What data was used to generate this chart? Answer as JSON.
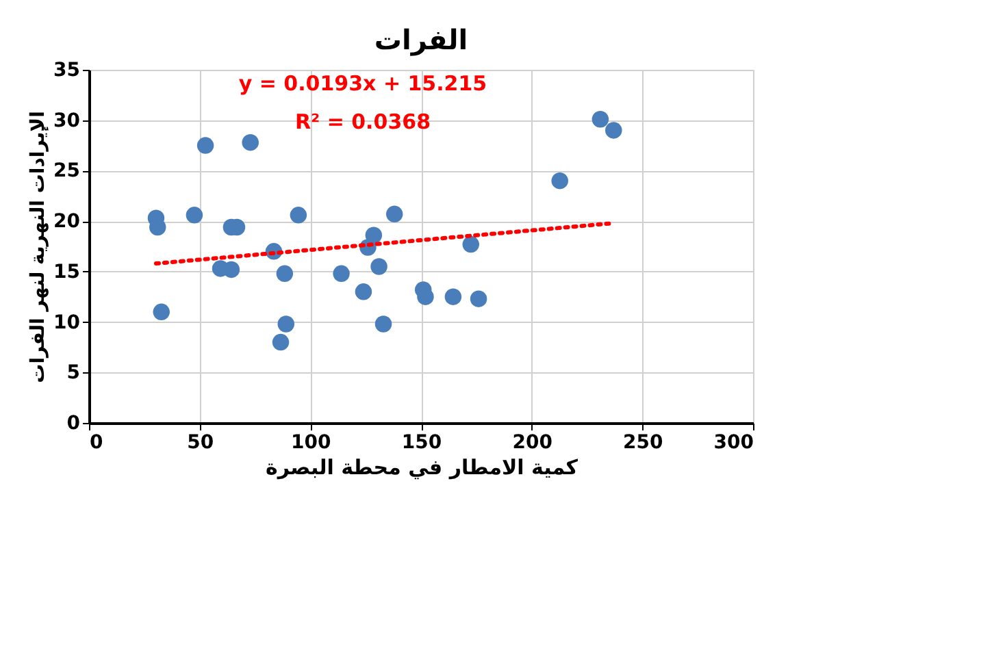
{
  "chart_data": {
    "type": "scatter",
    "title": "الفرات",
    "xlabel": "كمية الامطار في محطة البصرة",
    "ylabel": "الإيرادات النهرية لنهر الفرات",
    "xlim": [
      0,
      300
    ],
    "xticks": [
      0,
      50,
      100,
      150,
      200,
      250,
      300
    ],
    "ylim": [
      0,
      35
    ],
    "yticks": [
      0,
      5,
      10,
      15,
      20,
      25,
      30,
      35
    ],
    "grid": true,
    "annotations": [
      "y = 0.0193x + 15.215",
      "R² = 0.0368"
    ],
    "series": [
      {
        "marker": "circle",
        "color": "#4a7ebb",
        "x": [
          30.3,
          31,
          32.7,
          47.6,
          52.6,
          72.9,
          59.4,
          64.3,
          64.3,
          66.8,
          83.5,
          88.4,
          89,
          86.6,
          94.6,
          114,
          124,
          126,
          128.6,
          131,
          133,
          138,
          151,
          152,
          164.5,
          176,
          172.5,
          212.7,
          231,
          237
        ],
        "values": [
          20.3,
          19.4,
          11,
          20.6,
          27.5,
          27.8,
          15.3,
          15.2,
          19.4,
          19.4,
          17,
          14.8,
          9.8,
          8,
          20.6,
          14.8,
          13,
          17.4,
          18.6,
          15.5,
          9.8,
          20.7,
          13.2,
          12.5,
          12.5,
          12.3,
          17.7,
          24,
          30.1,
          29
        ]
      },
      {
        "type": "line",
        "color": "#ff0000",
        "line_style": "dotted",
        "x": [
          30.3,
          237
        ],
        "values": [
          15.8,
          19.8
        ]
      }
    ]
  }
}
